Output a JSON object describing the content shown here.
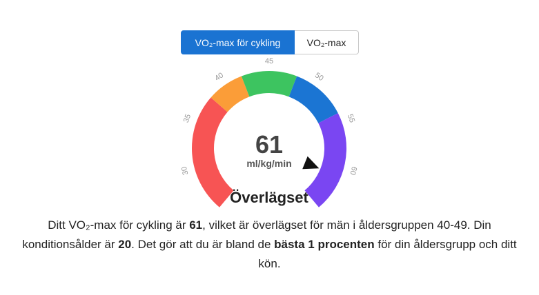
{
  "toggle": {
    "active_label": "VO₂-max för cykling",
    "inactive_label": "VO₂-max"
  },
  "gauge": {
    "value": "61",
    "value_number": 61,
    "unit": "ml/kg/min",
    "rating": "Överlägset",
    "scale_min": 25,
    "scale_max": 65,
    "segments": [
      {
        "from": 25,
        "to": 38,
        "color": "#f75454"
      },
      {
        "from": 38,
        "to": 42,
        "color": "#fb9d38"
      },
      {
        "from": 42,
        "to": 48,
        "color": "#3dc460"
      },
      {
        "from": 48,
        "to": 54,
        "color": "#1b75d3"
      },
      {
        "from": 54,
        "to": 65,
        "color": "#7a46f2"
      }
    ],
    "ticks": [
      "30",
      "35",
      "40",
      "45",
      "50",
      "55",
      "60"
    ],
    "tick_values": [
      30,
      35,
      40,
      45,
      50,
      55,
      60
    ]
  },
  "description": {
    "p1": "Ditt VO₂-max för cykling är ",
    "v1": "61",
    "p2": ", vilket är överlägset för män i åldersgruppen 40-49. Din konditionsålder är ",
    "v2": "20",
    "p3": ". Det gör att du är bland de ",
    "v3": "bästa 1 procenten",
    "p4": " för din åldersgrupp och ditt kön."
  }
}
